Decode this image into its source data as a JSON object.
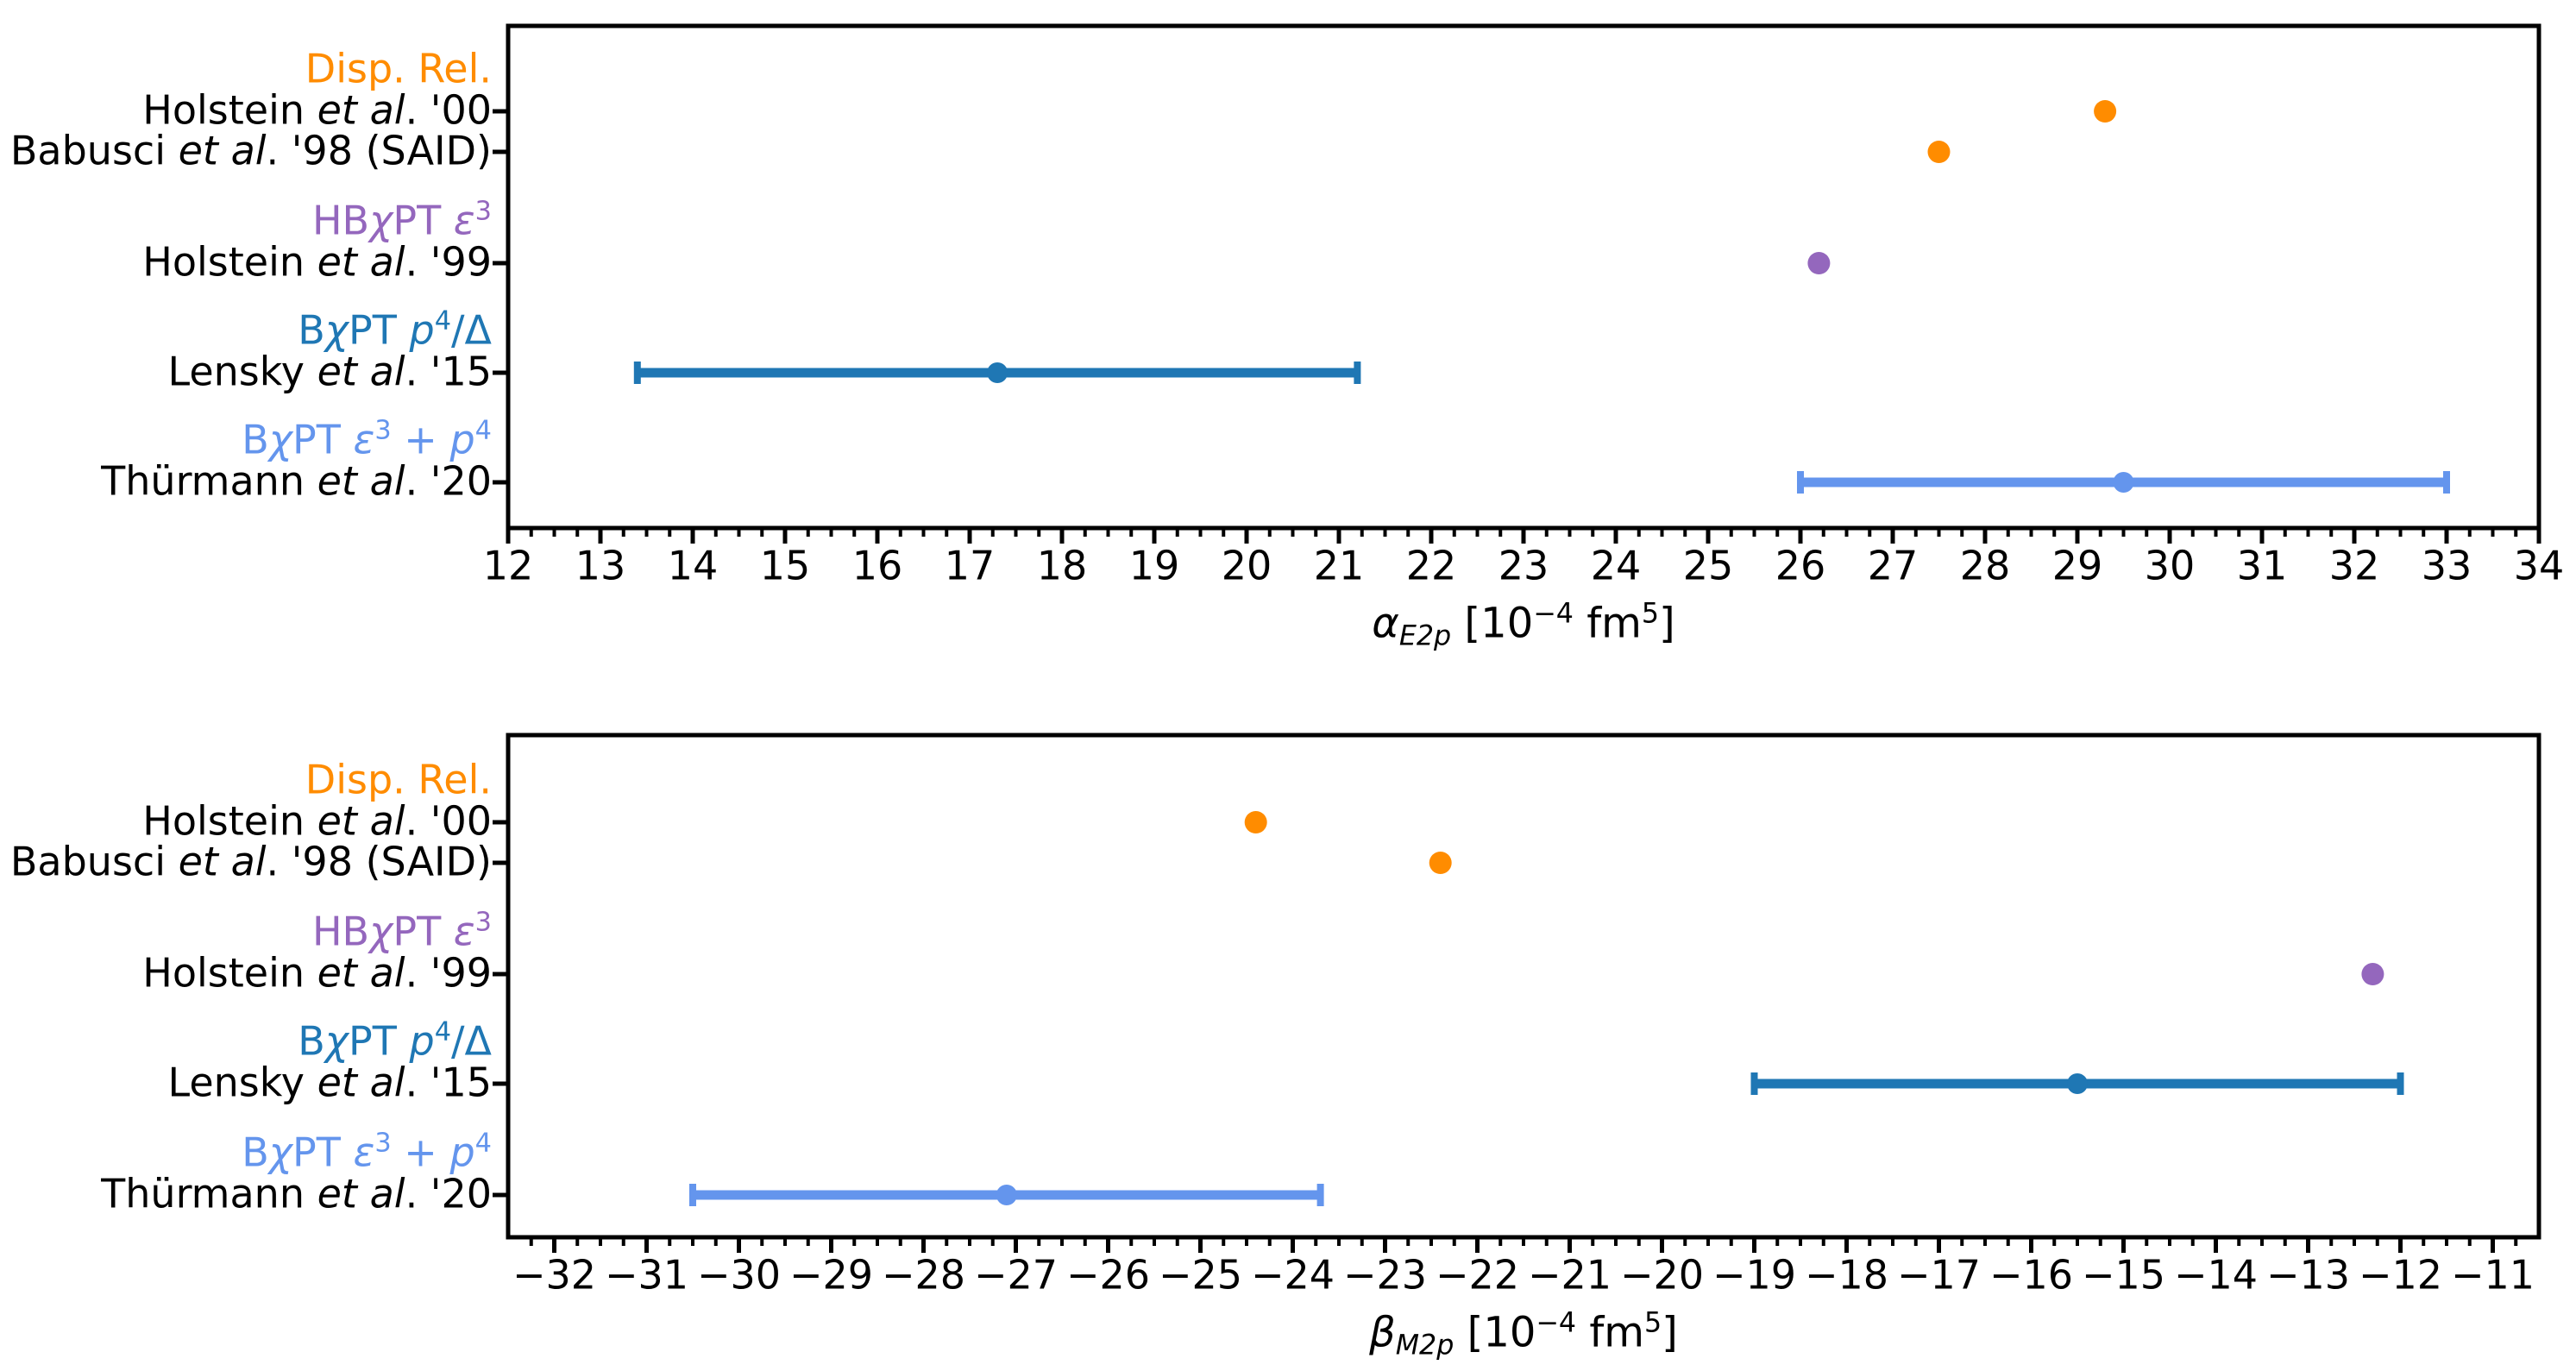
{
  "chart_data": [
    {
      "type": "scatter",
      "panel": "top",
      "orientation": "horizontal-errorbar",
      "grid": false,
      "legend_position": "none",
      "xlabel": "*α*~*E2p*~ [10^−4^ fm^5^]",
      "xlim": [
        12,
        34
      ],
      "xticks": [
        12,
        13,
        14,
        15,
        16,
        17,
        18,
        19,
        20,
        21,
        22,
        23,
        24,
        25,
        26,
        27,
        28,
        29,
        30,
        31,
        32,
        33,
        34
      ],
      "minor_tick_step": 0.25,
      "groups": [
        {
          "header": "Disp. Rel.",
          "color": "#ff8c00",
          "rows": [
            {
              "label": "Holstein *et al*. '00",
              "value": 29.3
            },
            {
              "label": "Babusci *et al*. '98 (SAID)",
              "value": 27.5
            }
          ]
        },
        {
          "header": "HB*χ*PT *ε*^3^",
          "color": "#9467bd",
          "rows": [
            {
              "label": "Holstein *et al*. '99",
              "value": 26.2
            }
          ]
        },
        {
          "header": "B*χ*PT *p*^4^/Δ",
          "color": "#1f77b4",
          "rows": [
            {
              "label": "Lensky *et al*. '15",
              "value": 17.3,
              "err": 3.9
            }
          ]
        },
        {
          "header": "B*χ*PT *ε*^3^ + *p*^4^",
          "color": "#6495ed",
          "rows": [
            {
              "label": "Thürmann *et al*. '20",
              "value": 29.5,
              "err": 3.5
            }
          ]
        }
      ]
    },
    {
      "type": "scatter",
      "panel": "bottom",
      "orientation": "horizontal-errorbar",
      "grid": false,
      "legend_position": "none",
      "xlabel": "*β*~*M2p*~ [10^−4^ fm^5^]",
      "xlim": [
        -32.5,
        -10.5
      ],
      "xticks": [
        -32,
        -31,
        -30,
        -29,
        -28,
        -27,
        -26,
        -25,
        -24,
        -23,
        -22,
        -21,
        -20,
        -19,
        -18,
        -17,
        -16,
        -15,
        -14,
        -13,
        -12,
        -11
      ],
      "minor_tick_step": 0.25,
      "groups": [
        {
          "header": "Disp. Rel.",
          "color": "#ff8c00",
          "rows": [
            {
              "label": "Holstein *et al*. '00",
              "value": -24.4
            },
            {
              "label": "Babusci *et al*. '98 (SAID)",
              "value": -22.4
            }
          ]
        },
        {
          "header": "HB*χ*PT *ε*^3^",
          "color": "#9467bd",
          "rows": [
            {
              "label": "Holstein *et al*. '99",
              "value": -12.3
            }
          ]
        },
        {
          "header": "B*χ*PT *p*^4^/Δ",
          "color": "#1f77b4",
          "rows": [
            {
              "label": "Lensky *et al*. '15",
              "value": -15.5,
              "err": 3.5
            }
          ]
        },
        {
          "header": "B*χ*PT *ε*^3^ + *p*^4^",
          "color": "#6495ed",
          "rows": [
            {
              "label": "Thürmann *et al*. '20",
              "value": -27.1,
              "err": 3.4
            }
          ]
        }
      ]
    }
  ]
}
